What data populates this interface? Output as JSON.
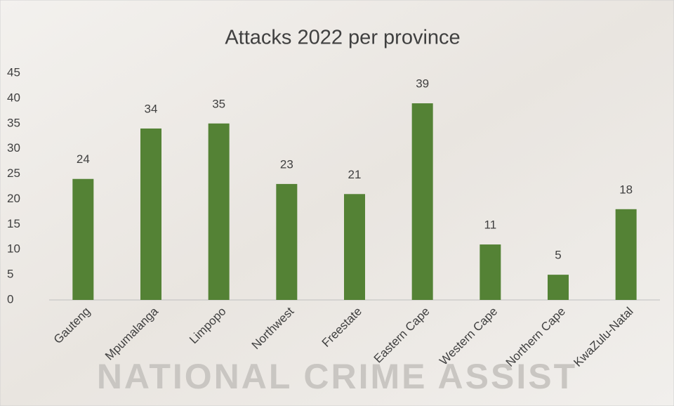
{
  "chart_data": {
    "type": "bar",
    "title": "Attacks 2022 per province",
    "watermark": "NATIONAL CRIME ASSIST",
    "categories": [
      "Gauteng",
      "Mpumalanga",
      "Limpopo",
      "Northwest",
      "Freestate",
      "Eastern Cape",
      "Western Cape",
      "Northern Cape",
      "KwaZulu-Natal"
    ],
    "values": [
      24,
      34,
      35,
      23,
      21,
      39,
      11,
      5,
      18
    ],
    "color": "#548235",
    "ylim": [
      0,
      45
    ],
    "yticks": [
      0,
      5,
      10,
      15,
      20,
      25,
      30,
      35,
      40,
      45
    ],
    "grid": false
  }
}
